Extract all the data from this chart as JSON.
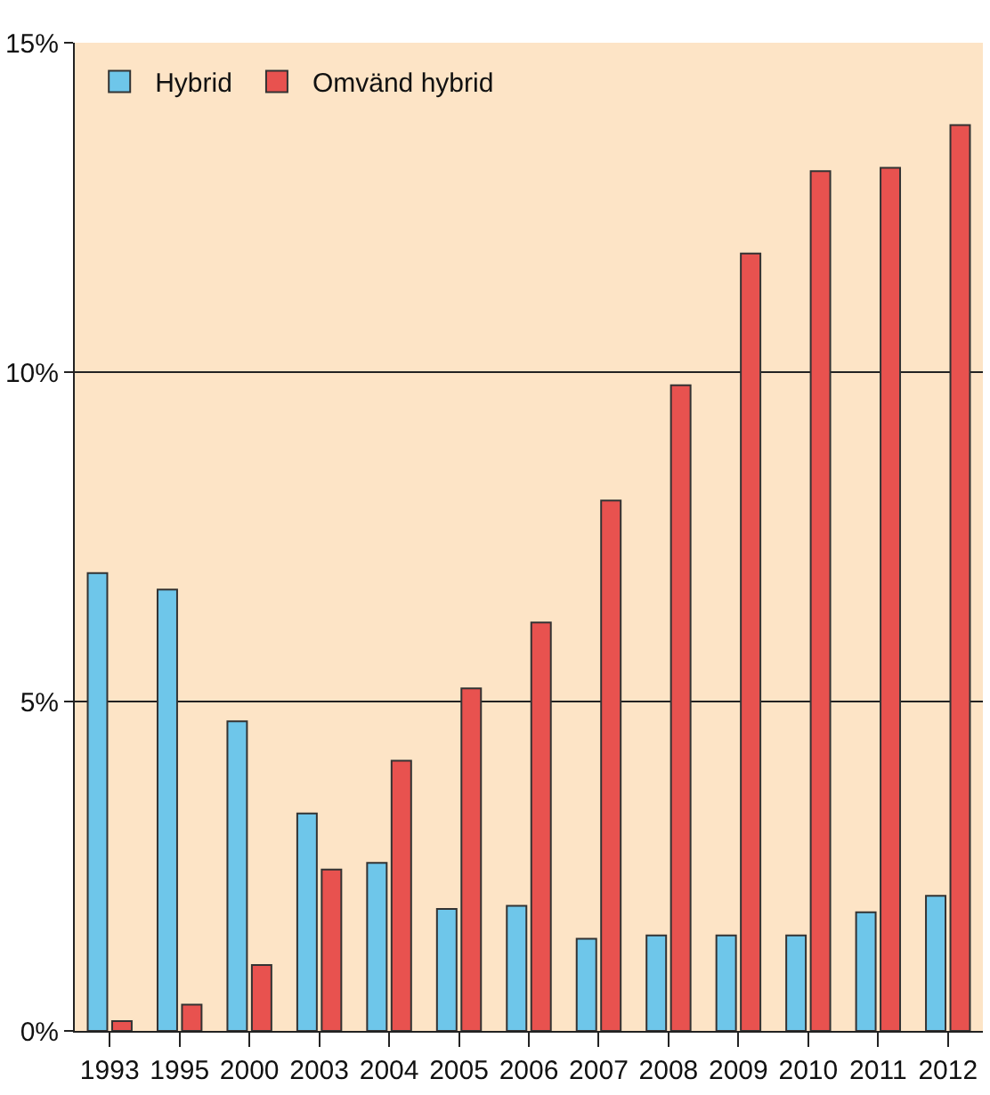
{
  "chart_data": {
    "type": "bar",
    "categories": [
      "1993",
      "1995",
      "2000",
      "2003",
      "2004",
      "2005",
      "2006",
      "2007",
      "2008",
      "2009",
      "2010",
      "2011",
      "2012"
    ],
    "series": [
      {
        "name": "Hybrid",
        "color": "#6ec6ea",
        "values": [
          6.95,
          6.7,
          4.7,
          3.3,
          2.55,
          1.85,
          1.9,
          1.4,
          1.45,
          1.45,
          1.45,
          1.8,
          2.05
        ]
      },
      {
        "name": "Omvänd hybrid",
        "color": "#e8524f",
        "values": [
          0.15,
          0.4,
          1.0,
          2.45,
          4.1,
          5.2,
          6.2,
          8.05,
          9.8,
          11.8,
          13.05,
          13.1,
          13.75
        ]
      }
    ],
    "ylim": [
      0,
      15
    ],
    "yticks": [
      {
        "value": 0,
        "label": "0%"
      },
      {
        "value": 5,
        "label": "5%"
      },
      {
        "value": 10,
        "label": "10%"
      },
      {
        "value": 15,
        "label": "15%"
      }
    ],
    "grid": "y",
    "legend": "top left"
  }
}
